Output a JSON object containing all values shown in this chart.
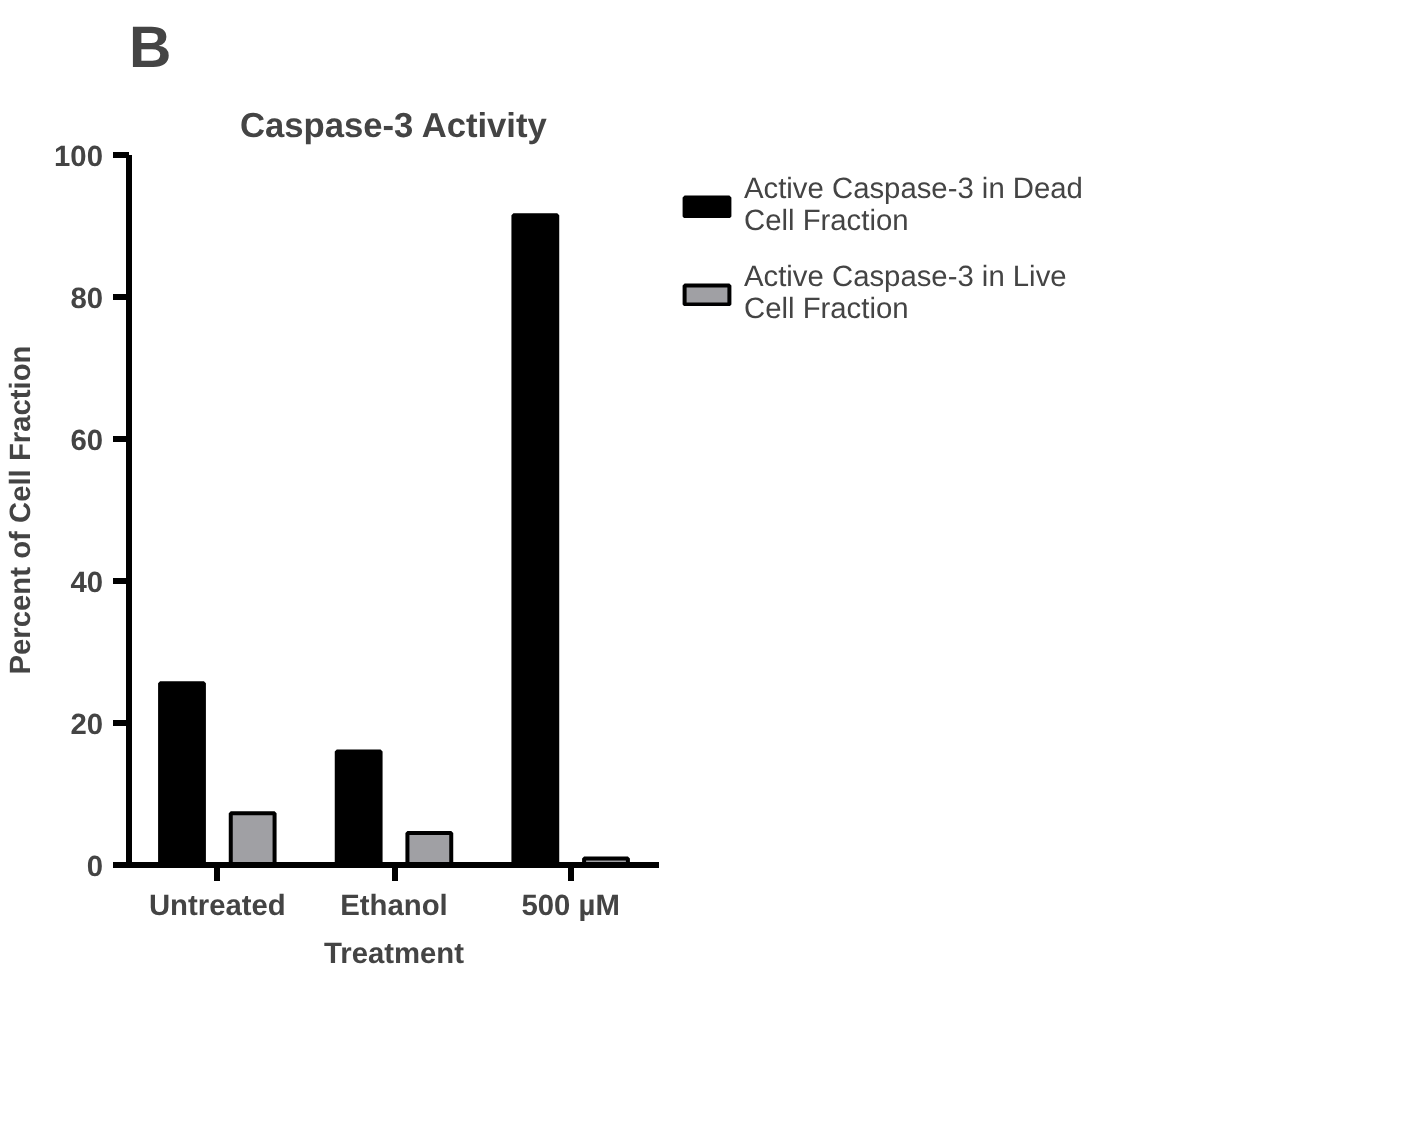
{
  "chart_data": {
    "type": "bar",
    "title": "Caspase-3 Activity",
    "xlabel": "Treatment",
    "ylabel": "Percent of Cell Fraction",
    "annotations": [
      "B"
    ],
    "categories": [
      "Untreated",
      "Ethanol",
      "500 µM"
    ],
    "series": [
      {
        "name": "Active Caspase-3 in Dead Cell Fraction",
        "color": "#000000",
        "values": [
          25.6,
          16.0,
          91.5
        ]
      },
      {
        "name": "Active Caspase-3 in Live Cell Fraction",
        "color": "#a0a0a4",
        "values": [
          7.3,
          4.5,
          0.9
        ]
      }
    ],
    "ylim": [
      0,
      100
    ],
    "yticks": [
      0,
      20,
      40,
      60,
      80,
      100
    ],
    "grid": false,
    "legend": "right"
  }
}
